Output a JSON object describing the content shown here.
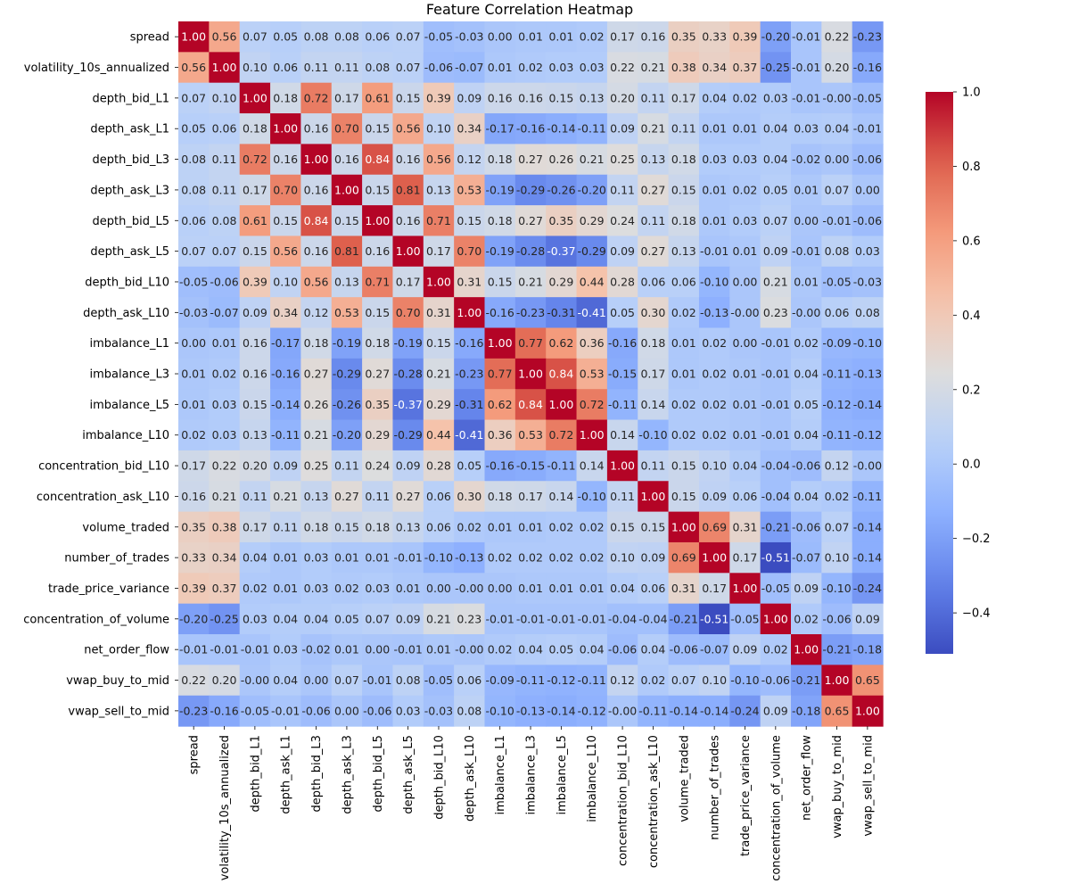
{
  "chart_data": {
    "type": "heatmap",
    "title": "Feature Correlation Heatmap",
    "xlabel": "",
    "ylabel": "",
    "colormap": "coolwarm",
    "colorbar": {
      "vmin": -0.51,
      "vmax": 1.0,
      "ticks": [
        1.0,
        0.8,
        0.6,
        0.4,
        0.2,
        0.0,
        -0.2,
        -0.4
      ],
      "tick_labels": [
        "1.0",
        "0.8",
        "0.6",
        "0.4",
        "0.2",
        "0.0",
        "−0.2",
        "−0.4"
      ]
    },
    "annotations": "two-decimal values in every cell",
    "labels": [
      "spread",
      "volatility_10s_annualized",
      "depth_bid_L1",
      "depth_ask_L1",
      "depth_bid_L3",
      "depth_ask_L3",
      "depth_bid_L5",
      "depth_ask_L5",
      "depth_bid_L10",
      "depth_ask_L10",
      "imbalance_L1",
      "imbalance_L3",
      "imbalance_L5",
      "imbalance_L10",
      "concentration_bid_L10",
      "concentration_ask_L10",
      "volume_traded",
      "number_of_trades",
      "trade_price_variance",
      "concentration_of_volume",
      "net_order_flow",
      "vwap_buy_to_mid",
      "vwap_sell_to_mid"
    ],
    "matrix": [
      [
        1.0,
        0.56,
        0.07,
        0.05,
        0.08,
        0.08,
        0.06,
        0.07,
        -0.05,
        -0.03,
        0.0,
        0.01,
        0.01,
        0.02,
        0.17,
        0.16,
        0.35,
        0.33,
        0.39,
        -0.2,
        -0.01,
        0.22,
        -0.23
      ],
      [
        0.56,
        1.0,
        0.1,
        0.06,
        0.11,
        0.11,
        0.08,
        0.07,
        -0.06,
        -0.07,
        0.01,
        0.02,
        0.03,
        0.03,
        0.22,
        0.21,
        0.38,
        0.34,
        0.37,
        -0.25,
        -0.01,
        0.2,
        -0.16
      ],
      [
        0.07,
        0.1,
        1.0,
        0.18,
        0.72,
        0.17,
        0.61,
        0.15,
        0.39,
        0.09,
        0.16,
        0.16,
        0.15,
        0.13,
        0.2,
        0.11,
        0.17,
        0.04,
        0.02,
        0.03,
        -0.01,
        -0.0,
        -0.05
      ],
      [
        0.05,
        0.06,
        0.18,
        1.0,
        0.16,
        0.7,
        0.15,
        0.56,
        0.1,
        0.34,
        -0.17,
        -0.16,
        -0.14,
        -0.11,
        0.09,
        0.21,
        0.11,
        0.01,
        0.01,
        0.04,
        0.03,
        0.04,
        -0.01
      ],
      [
        0.08,
        0.11,
        0.72,
        0.16,
        1.0,
        0.16,
        0.84,
        0.16,
        0.56,
        0.12,
        0.18,
        0.27,
        0.26,
        0.21,
        0.25,
        0.13,
        0.18,
        0.03,
        0.03,
        0.04,
        -0.02,
        0.0,
        -0.06
      ],
      [
        0.08,
        0.11,
        0.17,
        0.7,
        0.16,
        1.0,
        0.15,
        0.81,
        0.13,
        0.53,
        -0.19,
        -0.29,
        -0.26,
        -0.2,
        0.11,
        0.27,
        0.15,
        0.01,
        0.02,
        0.05,
        0.01,
        0.07,
        0.0
      ],
      [
        0.06,
        0.08,
        0.61,
        0.15,
        0.84,
        0.15,
        1.0,
        0.16,
        0.71,
        0.15,
        0.18,
        0.27,
        0.35,
        0.29,
        0.24,
        0.11,
        0.18,
        0.01,
        0.03,
        0.07,
        0.0,
        -0.01,
        -0.06
      ],
      [
        0.07,
        0.07,
        0.15,
        0.56,
        0.16,
        0.81,
        0.16,
        1.0,
        0.17,
        0.7,
        -0.19,
        -0.28,
        -0.37,
        -0.29,
        0.09,
        0.27,
        0.13,
        -0.01,
        0.01,
        0.09,
        -0.01,
        0.08,
        0.03
      ],
      [
        -0.05,
        -0.06,
        0.39,
        0.1,
        0.56,
        0.13,
        0.71,
        0.17,
        1.0,
        0.31,
        0.15,
        0.21,
        0.29,
        0.44,
        0.28,
        0.06,
        0.06,
        -0.1,
        0.0,
        0.21,
        0.01,
        -0.05,
        -0.03
      ],
      [
        -0.03,
        -0.07,
        0.09,
        0.34,
        0.12,
        0.53,
        0.15,
        0.7,
        0.31,
        1.0,
        -0.16,
        -0.23,
        -0.31,
        -0.41,
        0.05,
        0.3,
        0.02,
        -0.13,
        -0.0,
        0.23,
        -0.0,
        0.06,
        0.08
      ],
      [
        0.0,
        0.01,
        0.16,
        -0.17,
        0.18,
        -0.19,
        0.18,
        -0.19,
        0.15,
        -0.16,
        1.0,
        0.77,
        0.62,
        0.36,
        -0.16,
        0.18,
        0.01,
        0.02,
        0.0,
        -0.01,
        0.02,
        -0.09,
        -0.1
      ],
      [
        0.01,
        0.02,
        0.16,
        -0.16,
        0.27,
        -0.29,
        0.27,
        -0.28,
        0.21,
        -0.23,
        0.77,
        1.0,
        0.84,
        0.53,
        -0.15,
        0.17,
        0.01,
        0.02,
        0.01,
        -0.01,
        0.04,
        -0.11,
        -0.13
      ],
      [
        0.01,
        0.03,
        0.15,
        -0.14,
        0.26,
        -0.26,
        0.35,
        -0.37,
        0.29,
        -0.31,
        0.62,
        0.84,
        1.0,
        0.72,
        -0.11,
        0.14,
        0.02,
        0.02,
        0.01,
        -0.01,
        0.05,
        -0.12,
        -0.14
      ],
      [
        0.02,
        0.03,
        0.13,
        -0.11,
        0.21,
        -0.2,
        0.29,
        -0.29,
        0.44,
        -0.41,
        0.36,
        0.53,
        0.72,
        1.0,
        0.14,
        -0.1,
        0.02,
        0.02,
        0.01,
        -0.01,
        0.04,
        -0.11,
        -0.12
      ],
      [
        0.17,
        0.22,
        0.2,
        0.09,
        0.25,
        0.11,
        0.24,
        0.09,
        0.28,
        0.05,
        -0.16,
        -0.15,
        -0.11,
        0.14,
        1.0,
        0.11,
        0.15,
        0.1,
        0.04,
        -0.04,
        -0.06,
        0.12,
        -0.0
      ],
      [
        0.16,
        0.21,
        0.11,
        0.21,
        0.13,
        0.27,
        0.11,
        0.27,
        0.06,
        0.3,
        0.18,
        0.17,
        0.14,
        -0.1,
        0.11,
        1.0,
        0.15,
        0.09,
        0.06,
        -0.04,
        0.04,
        0.02,
        -0.11
      ],
      [
        0.35,
        0.38,
        0.17,
        0.11,
        0.18,
        0.15,
        0.18,
        0.13,
        0.06,
        0.02,
        0.01,
        0.01,
        0.02,
        0.02,
        0.15,
        0.15,
        1.0,
        0.69,
        0.31,
        -0.21,
        -0.06,
        0.07,
        -0.14
      ],
      [
        0.33,
        0.34,
        0.04,
        0.01,
        0.03,
        0.01,
        0.01,
        -0.01,
        -0.1,
        -0.13,
        0.02,
        0.02,
        0.02,
        0.02,
        0.1,
        0.09,
        0.69,
        1.0,
        0.17,
        -0.51,
        -0.07,
        0.1,
        -0.14
      ],
      [
        0.39,
        0.37,
        0.02,
        0.01,
        0.03,
        0.02,
        0.03,
        0.01,
        0.0,
        -0.0,
        0.0,
        0.01,
        0.01,
        0.01,
        0.04,
        0.06,
        0.31,
        0.17,
        1.0,
        -0.05,
        0.09,
        -0.1,
        -0.24
      ],
      [
        -0.2,
        -0.25,
        0.03,
        0.04,
        0.04,
        0.05,
        0.07,
        0.09,
        0.21,
        0.23,
        -0.01,
        -0.01,
        -0.01,
        -0.01,
        -0.04,
        -0.04,
        -0.21,
        -0.51,
        -0.05,
        1.0,
        0.02,
        -0.06,
        0.09
      ],
      [
        -0.01,
        -0.01,
        -0.01,
        0.03,
        -0.02,
        0.01,
        0.0,
        -0.01,
        0.01,
        -0.0,
        0.02,
        0.04,
        0.05,
        0.04,
        -0.06,
        0.04,
        -0.06,
        -0.07,
        0.09,
        0.02,
        1.0,
        -0.21,
        -0.18
      ],
      [
        0.22,
        0.2,
        -0.0,
        0.04,
        0.0,
        0.07,
        -0.01,
        0.08,
        -0.05,
        0.06,
        -0.09,
        -0.11,
        -0.12,
        -0.11,
        0.12,
        0.02,
        0.07,
        0.1,
        -0.1,
        -0.06,
        -0.21,
        1.0,
        0.65
      ],
      [
        -0.23,
        -0.16,
        -0.05,
        -0.01,
        -0.06,
        0.0,
        -0.06,
        0.03,
        -0.03,
        0.08,
        -0.1,
        -0.13,
        -0.14,
        -0.12,
        -0.0,
        -0.11,
        -0.14,
        -0.14,
        -0.24,
        0.09,
        -0.18,
        0.65,
        1.0
      ]
    ]
  }
}
